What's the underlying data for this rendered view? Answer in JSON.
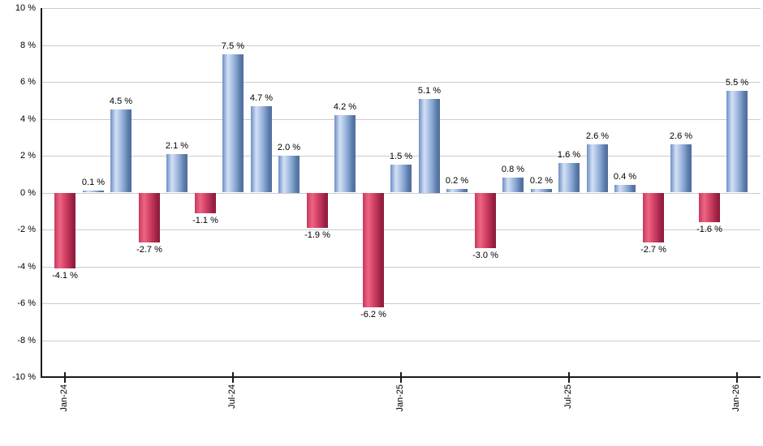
{
  "chart_data": {
    "type": "bar",
    "title": "",
    "xlabel": "",
    "ylabel": "",
    "ylim": [
      -10,
      10
    ],
    "y_tick_step": 2,
    "grid": true,
    "legend_position": "none",
    "y_tick_values": [
      10,
      8,
      6,
      4,
      2,
      0,
      -2,
      -4,
      -6,
      -8,
      -10
    ],
    "y_tick_labels": [
      "10 %",
      "8 %",
      "6 %",
      "4 %",
      "2 %",
      "0 %",
      "-2 %",
      "-4 %",
      "-6 %",
      "-8 %",
      "-10 %"
    ],
    "values": [
      -4.1,
      0.1,
      4.5,
      -2.7,
      2.1,
      -1.1,
      7.5,
      4.7,
      2.0,
      -1.9,
      4.2,
      -6.2,
      1.5,
      5.1,
      0.2,
      -3.0,
      0.8,
      0.2,
      1.6,
      2.6,
      0.4,
      -2.7,
      2.6,
      -1.6,
      5.5
    ],
    "bar_labels": [
      "-4.1 %",
      "0.1 %",
      "4.5 %",
      "-2.7 %",
      "2.1 %",
      "-1.1 %",
      "7.5 %",
      "4.7 %",
      "2.0 %",
      "-1.9 %",
      "4.2 %",
      "-6.2 %",
      "1.5 %",
      "5.1 %",
      "0.2 %",
      "-3.0 %",
      "0.8 %",
      "0.2 %",
      "1.6 %",
      "2.6 %",
      "0.4 %",
      "-2.7 %",
      "2.6 %",
      "-1.6 %",
      "5.5 %"
    ],
    "x_ticks": [
      {
        "label": "Jan-24",
        "index": 0
      },
      {
        "label": "Jul-24",
        "index": 6
      },
      {
        "label": "Jan-25",
        "index": 12
      },
      {
        "label": "Jul-25",
        "index": 18
      },
      {
        "label": "Jan-26",
        "index": 24
      }
    ],
    "positive_color": "#7fa3d6",
    "negative_color": "#c63a5e",
    "gridline_color": "#cccccc",
    "axis_color": "#1a1a1a",
    "label_color": "#000000"
  }
}
